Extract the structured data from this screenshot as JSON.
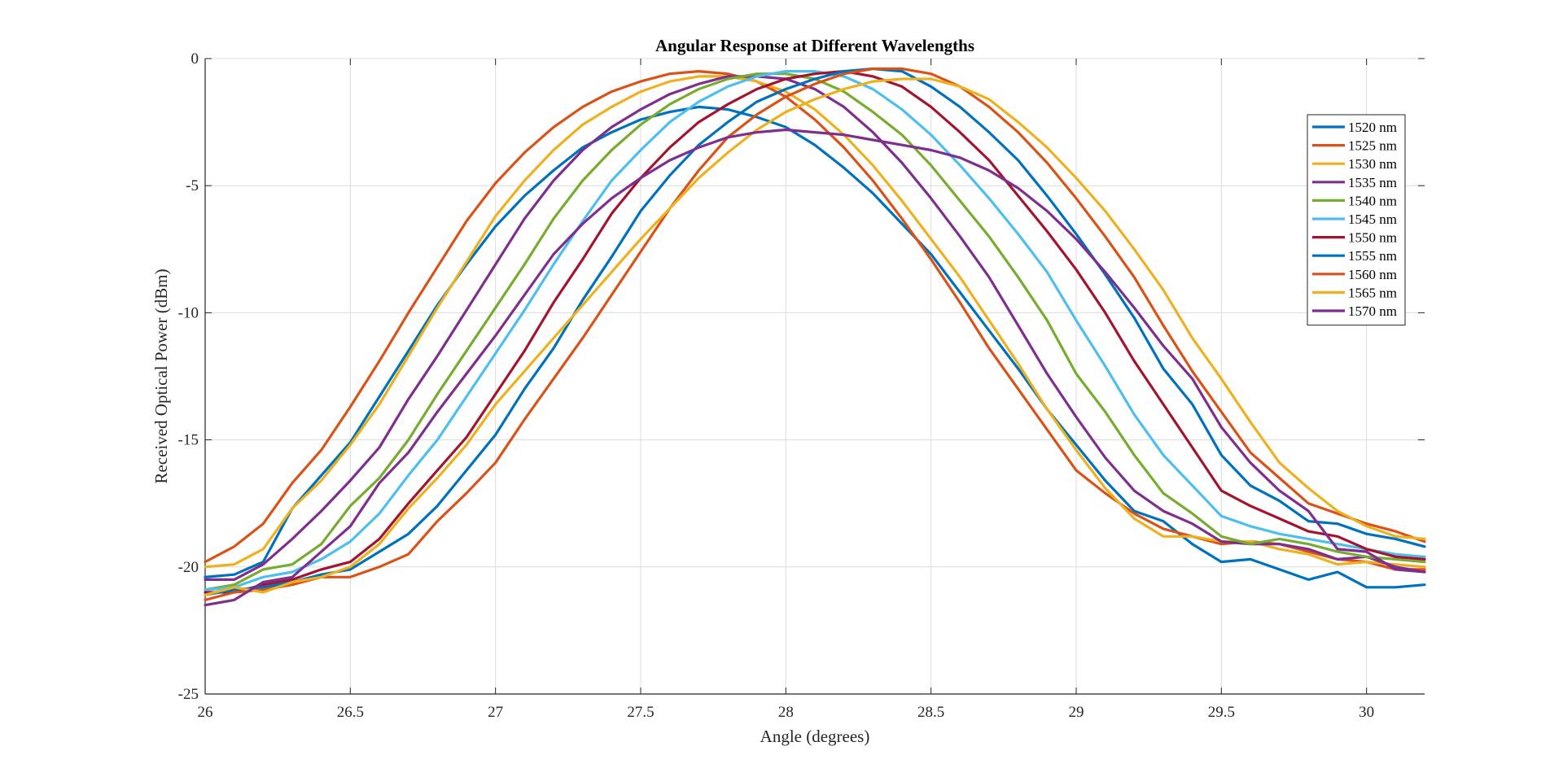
{
  "chart_data": {
    "type": "line",
    "title": "Angular Response at Different Wavelengths",
    "xlabel": "Angle (degrees)",
    "ylabel": "Received Optical Power (dBm)",
    "xlim": [
      26,
      30.2
    ],
    "ylim": [
      -25,
      0
    ],
    "xticks": [
      26,
      26.5,
      27,
      27.5,
      28,
      28.5,
      29,
      29.5,
      30
    ],
    "xtick_labels": [
      "26",
      "26.5",
      "27",
      "27.5",
      "28",
      "28.5",
      "29",
      "29.5",
      "30"
    ],
    "yticks": [
      -25,
      -20,
      -15,
      -10,
      -5,
      0
    ],
    "ytick_labels": [
      "-25",
      "-20",
      "-15",
      "-10",
      "-5",
      "0"
    ],
    "grid": true,
    "legend_position": "top-right",
    "x": [
      26.0,
      26.1,
      26.2,
      26.3,
      26.4,
      26.5,
      26.6,
      26.7,
      26.8,
      26.9,
      27.0,
      27.1,
      27.2,
      27.3,
      27.4,
      27.5,
      27.6,
      27.7,
      27.8,
      27.9,
      28.0,
      28.1,
      28.2,
      28.3,
      28.4,
      28.5,
      28.6,
      28.7,
      28.8,
      28.9,
      29.0,
      29.1,
      29.2,
      29.3,
      29.4,
      29.5,
      29.6,
      29.7,
      29.8,
      29.9,
      30.0,
      30.1,
      30.2
    ],
    "series": [
      {
        "name": "1520 nm",
        "color": "#0072BD",
        "values": [
          -20.4,
          -20.3,
          -19.8,
          -17.7,
          -16.4,
          -15.1,
          -13.3,
          -11.5,
          -9.7,
          -8.1,
          -6.6,
          -5.4,
          -4.4,
          -3.5,
          -2.9,
          -2.4,
          -2.1,
          -1.9,
          -2.0,
          -2.3,
          -2.7,
          -3.4,
          -4.3,
          -5.3,
          -6.5,
          -7.7,
          -9.2,
          -10.7,
          -12.2,
          -13.8,
          -15.2,
          -16.6,
          -17.8,
          -18.2,
          -19.1,
          -19.8,
          -19.7,
          -20.1,
          -20.5,
          -20.2,
          -20.8,
          -20.8,
          -20.7
        ]
      },
      {
        "name": "1525 nm",
        "color": "#D95319",
        "values": [
          -19.8,
          -19.2,
          -18.3,
          -16.7,
          -15.4,
          -13.7,
          -11.9,
          -10.0,
          -8.2,
          -6.4,
          -4.9,
          -3.7,
          -2.7,
          -1.9,
          -1.3,
          -0.9,
          -0.6,
          -0.5,
          -0.6,
          -0.9,
          -1.5,
          -2.4,
          -3.5,
          -4.8,
          -6.3,
          -7.9,
          -9.6,
          -11.4,
          -13.0,
          -14.6,
          -16.2,
          -17.1,
          -17.9,
          -18.5,
          -18.8,
          -19.1,
          -19.0,
          -19.1,
          -19.4,
          -19.7,
          -19.8,
          -20.1,
          -20.1
        ]
      },
      {
        "name": "1530 nm",
        "color": "#EDB120",
        "values": [
          -20.0,
          -19.9,
          -19.3,
          -17.7,
          -16.6,
          -15.2,
          -13.6,
          -11.7,
          -9.8,
          -8.0,
          -6.2,
          -4.8,
          -3.6,
          -2.6,
          -1.9,
          -1.3,
          -0.9,
          -0.7,
          -0.7,
          -0.9,
          -1.3,
          -2.0,
          -3.0,
          -4.2,
          -5.6,
          -7.1,
          -8.6,
          -10.3,
          -12.0,
          -13.8,
          -15.4,
          -16.9,
          -18.1,
          -18.8,
          -18.8,
          -19.0,
          -19.0,
          -19.3,
          -19.5,
          -19.9,
          -19.8,
          -19.9,
          -20.0
        ]
      },
      {
        "name": "1535 nm",
        "color": "#7E2F8E",
        "values": [
          -20.5,
          -20.5,
          -19.9,
          -18.9,
          -17.8,
          -16.6,
          -15.3,
          -13.4,
          -11.7,
          -9.9,
          -8.1,
          -6.3,
          -4.8,
          -3.6,
          -2.7,
          -2.0,
          -1.4,
          -1.0,
          -0.7,
          -0.7,
          -0.8,
          -1.2,
          -1.9,
          -2.9,
          -4.1,
          -5.5,
          -7.0,
          -8.6,
          -10.5,
          -12.4,
          -14.1,
          -15.7,
          -17.0,
          -17.8,
          -18.3,
          -19.0,
          -19.1,
          -19.1,
          -19.3,
          -19.7,
          -19.6,
          -20.0,
          -20.2
        ]
      },
      {
        "name": "1540 nm",
        "color": "#77AC30",
        "values": [
          -20.9,
          -20.7,
          -20.1,
          -19.9,
          -19.1,
          -17.6,
          -16.5,
          -15.0,
          -13.2,
          -11.5,
          -9.8,
          -8.1,
          -6.3,
          -4.8,
          -3.6,
          -2.6,
          -1.8,
          -1.2,
          -0.8,
          -0.6,
          -0.6,
          -0.8,
          -1.3,
          -2.1,
          -3.0,
          -4.2,
          -5.6,
          -7.0,
          -8.6,
          -10.3,
          -12.4,
          -13.9,
          -15.6,
          -17.1,
          -17.9,
          -18.8,
          -19.1,
          -18.9,
          -19.1,
          -19.4,
          -19.6,
          -19.7,
          -19.8
        ]
      },
      {
        "name": "1545 nm",
        "color": "#4DBEEE",
        "values": [
          -20.9,
          -20.8,
          -20.4,
          -20.2,
          -19.7,
          -19.0,
          -17.9,
          -16.4,
          -15.0,
          -13.3,
          -11.6,
          -9.9,
          -8.1,
          -6.4,
          -4.8,
          -3.6,
          -2.5,
          -1.7,
          -1.1,
          -0.7,
          -0.5,
          -0.5,
          -0.7,
          -1.2,
          -2.0,
          -3.0,
          -4.2,
          -5.5,
          -6.9,
          -8.4,
          -10.3,
          -12.1,
          -14.0,
          -15.6,
          -16.8,
          -18.0,
          -18.4,
          -18.7,
          -18.9,
          -19.1,
          -19.3,
          -19.5,
          -19.6
        ]
      },
      {
        "name": "1550 nm",
        "color": "#A2142F",
        "values": [
          -21.0,
          -21.0,
          -20.7,
          -20.5,
          -20.1,
          -19.8,
          -18.9,
          -17.5,
          -16.2,
          -14.9,
          -13.2,
          -11.5,
          -9.6,
          -7.9,
          -6.1,
          -4.7,
          -3.5,
          -2.5,
          -1.8,
          -1.2,
          -0.8,
          -0.6,
          -0.5,
          -0.7,
          -1.1,
          -1.9,
          -2.9,
          -4.0,
          -5.4,
          -6.8,
          -8.3,
          -10.0,
          -11.9,
          -13.6,
          -15.3,
          -17.0,
          -17.6,
          -18.1,
          -18.6,
          -18.8,
          -19.3,
          -19.6,
          -19.7
        ]
      },
      {
        "name": "1555 nm",
        "color": "#0072BD",
        "values": [
          -21.1,
          -20.9,
          -20.8,
          -20.6,
          -20.3,
          -20.1,
          -19.4,
          -18.7,
          -17.6,
          -16.2,
          -14.8,
          -13.0,
          -11.4,
          -9.5,
          -7.8,
          -6.0,
          -4.6,
          -3.4,
          -2.5,
          -1.7,
          -1.2,
          -0.8,
          -0.5,
          -0.4,
          -0.5,
          -1.1,
          -1.9,
          -2.9,
          -4.0,
          -5.4,
          -6.9,
          -8.5,
          -10.2,
          -12.2,
          -13.6,
          -15.6,
          -16.8,
          -17.4,
          -18.2,
          -18.3,
          -18.7,
          -18.9,
          -19.2
        ]
      },
      {
        "name": "1560 nm",
        "color": "#D95319",
        "values": [
          -21.3,
          -21.0,
          -20.9,
          -20.7,
          -20.4,
          -20.4,
          -20.0,
          -19.5,
          -18.2,
          -17.1,
          -15.9,
          -14.2,
          -12.6,
          -11.0,
          -9.3,
          -7.6,
          -5.9,
          -4.4,
          -3.1,
          -2.2,
          -1.5,
          -1.0,
          -0.6,
          -0.4,
          -0.4,
          -0.6,
          -1.1,
          -1.9,
          -2.9,
          -4.1,
          -5.5,
          -7.0,
          -8.6,
          -10.5,
          -12.3,
          -13.9,
          -15.5,
          -16.5,
          -17.5,
          -17.9,
          -18.3,
          -18.6,
          -19.0
        ]
      },
      {
        "name": "1565 nm",
        "color": "#EDB120",
        "values": [
          -21.1,
          -20.8,
          -21.0,
          -20.6,
          -20.4,
          -20.0,
          -19.1,
          -17.7,
          -16.5,
          -15.2,
          -13.6,
          -12.3,
          -11.0,
          -9.7,
          -8.4,
          -7.1,
          -5.9,
          -4.7,
          -3.7,
          -2.8,
          -2.1,
          -1.6,
          -1.2,
          -0.9,
          -0.8,
          -0.8,
          -1.1,
          -1.6,
          -2.5,
          -3.5,
          -4.7,
          -6.0,
          -7.5,
          -9.1,
          -11.0,
          -12.6,
          -14.3,
          -15.9,
          -16.9,
          -17.8,
          -18.4,
          -18.8,
          -18.9
        ]
      },
      {
        "name": "1570 nm",
        "color": "#7E2F8E",
        "values": [
          -21.5,
          -21.3,
          -20.6,
          -20.4,
          -19.4,
          -18.4,
          -16.7,
          -15.5,
          -13.9,
          -12.4,
          -10.9,
          -9.3,
          -7.7,
          -6.5,
          -5.5,
          -4.7,
          -4.0,
          -3.5,
          -3.1,
          -2.9,
          -2.8,
          -2.9,
          -3.0,
          -3.2,
          -3.4,
          -3.6,
          -3.9,
          -4.4,
          -5.1,
          -6.0,
          -7.1,
          -8.4,
          -9.8,
          -11.3,
          -12.6,
          -14.5,
          -15.9,
          -17.0,
          -17.8,
          -19.3,
          -19.4,
          -20.1,
          -20.2
        ]
      }
    ]
  }
}
